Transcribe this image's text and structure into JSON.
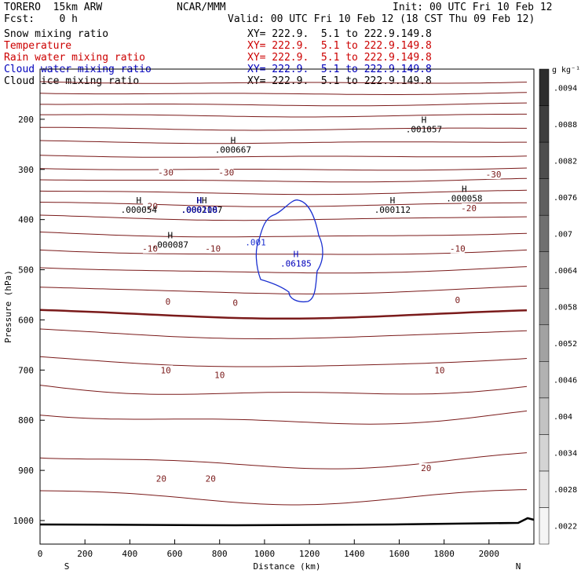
{
  "header": {
    "model": "TORERO  15km ARW",
    "center": "NCAR/MMM",
    "init": "Init: 00 UTC Fri 10 Feb 12",
    "fcst": "Fcst:    0 h",
    "valid": "Valid: 00 UTC Fri 10 Feb 12 (18 CST Thu 09 Feb 12)"
  },
  "fields": [
    {
      "name": "Snow mixing ratio",
      "xy": "XY= 222.9.  5.1 to 222.9.149.8",
      "color": "#000000"
    },
    {
      "name": "Temperature",
      "xy": "XY= 222.9.  5.1 to 222.9.149.8",
      "color": "#cc0000"
    },
    {
      "name": "Rain water mixing ratio",
      "xy": "XY= 222.9.  5.1 to 222.9.149.8",
      "color": "#cc0000"
    },
    {
      "name": "Cloud water mixing ratio",
      "xy": "XY= 222.9.  5.1 to 222.9.149.8",
      "color": "#0000bb"
    },
    {
      "name": "Cloud ice mixing ratio",
      "xy": "XY= 222.9.  5.1 to 222.9.149.8",
      "color": "#000000"
    }
  ],
  "colors": {
    "isotherm": "#7a1a1a",
    "cloud_water": "#1a2fd0",
    "ground": "#000000"
  },
  "chart_data": {
    "type": "contour",
    "xlabel": "Distance (km)",
    "ylabel": "Pressure (hPa)",
    "xlim": [
      0,
      2200
    ],
    "ylim": [
      1050,
      100
    ],
    "x_ticks": [
      0,
      200,
      400,
      600,
      800,
      1000,
      1200,
      1400,
      1600,
      1800,
      2000
    ],
    "y_ticks": [
      200,
      300,
      400,
      500,
      600,
      700,
      800,
      900,
      1000
    ],
    "x_end_labels": {
      "left": "S",
      "right": "N"
    },
    "isotherm_labels": [
      {
        "text": "-30",
        "x": 560,
        "p": 306
      },
      {
        "text": "-30",
        "x": 830,
        "p": 306
      },
      {
        "text": "-30",
        "x": 2020,
        "p": 310
      },
      {
        "text": "-20",
        "x": 490,
        "p": 373
      },
      {
        "text": "-20",
        "x": 1910,
        "p": 377
      },
      {
        "text": "-10",
        "x": 490,
        "p": 458
      },
      {
        "text": "-10",
        "x": 770,
        "p": 458
      },
      {
        "text": "-10",
        "x": 1860,
        "p": 458
      },
      {
        "text": "0",
        "x": 570,
        "p": 563
      },
      {
        "text": "0",
        "x": 870,
        "p": 566
      },
      {
        "text": "0",
        "x": 1860,
        "p": 560
      },
      {
        "text": "10",
        "x": 560,
        "p": 700
      },
      {
        "text": "10",
        "x": 800,
        "p": 710
      },
      {
        "text": "10",
        "x": 1780,
        "p": 700
      },
      {
        "text": "20",
        "x": 540,
        "p": 916
      },
      {
        "text": "20",
        "x": 760,
        "p": 916
      },
      {
        "text": "20",
        "x": 1720,
        "p": 895
      }
    ],
    "maxima": [
      {
        "label": "H",
        "value": ".000667",
        "x": 860,
        "p": 248,
        "color": "#000000"
      },
      {
        "label": "H",
        "value": ".001057",
        "x": 1710,
        "p": 207,
        "color": "#000000"
      },
      {
        "label": "H",
        "value": ".000054",
        "x": 440,
        "p": 368,
        "color": "#000000"
      },
      {
        "label": "H",
        "value": ".000087",
        "x": 580,
        "p": 437,
        "color": "#000000"
      },
      {
        "label": "H",
        "value": ".000112",
        "x": 1570,
        "p": 368,
        "color": "#000000"
      },
      {
        "label": "H",
        "value": ".000058",
        "x": 1890,
        "p": 345,
        "color": "#000000"
      },
      {
        "label": "HH",
        "value": ".0002107",
        "x": 720,
        "p": 368,
        "color": "#000000"
      },
      {
        "label": "H",
        "value": ".000108",
        "x": 710,
        "p": 368,
        "color": "#0000bb"
      },
      {
        "label": "H",
        "value": ".06185",
        "x": 1140,
        "p": 475,
        "color": "#0000bb"
      }
    ],
    "cloud_contour_label": {
      "text": ".001",
      "x": 960,
      "p": 451
    },
    "colorbar": {
      "unit": "g kg⁻¹",
      "labels": [
        ".0022",
        ".0028",
        ".0034",
        ".004",
        ".0046",
        ".0052",
        ".0058",
        ".0064",
        ".007",
        ".0076",
        ".0082",
        ".0088",
        ".0094"
      ]
    }
  }
}
